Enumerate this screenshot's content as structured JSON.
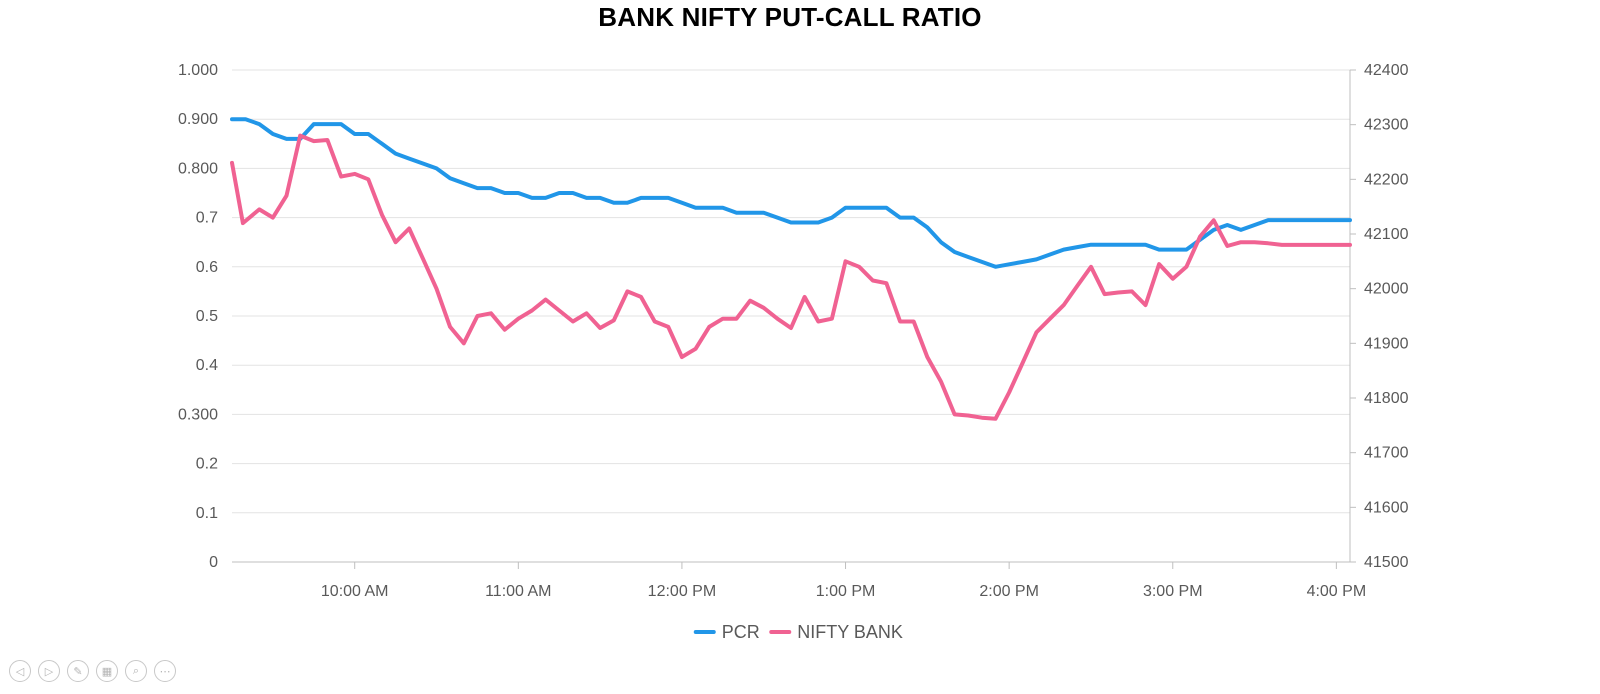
{
  "chart_data": {
    "type": "line",
    "title": "BANK NIFTY PUT-CALL RATIO",
    "left_axis": {
      "min": 0,
      "max": 1.0,
      "tick_values": [
        0,
        0.1,
        0.2,
        0.3,
        0.4,
        0.5,
        0.6,
        0.7,
        0.8,
        0.9,
        1.0
      ],
      "tick_labels": [
        "0",
        "0.1",
        "0.2",
        "0.300",
        "0.4",
        "0.5",
        "0.6",
        "0.7",
        "0.800",
        "0.900",
        "1.000"
      ]
    },
    "right_axis": {
      "min": 41500,
      "max": 42400,
      "tick_values": [
        41500,
        41600,
        41700,
        41800,
        41900,
        42000,
        42100,
        42200,
        42300,
        42400
      ],
      "tick_labels": [
        "41500",
        "41600",
        "41700",
        "41800",
        "41900",
        "42000",
        "42100",
        "42200",
        "42300",
        "42400"
      ]
    },
    "x_axis": {
      "min": "09:15",
      "max": "16:05",
      "tick_values": [
        "10:00",
        "11:00",
        "12:00",
        "13:00",
        "14:00",
        "15:00",
        "16:00"
      ],
      "tick_labels": [
        "10:00 AM",
        "11:00 AM",
        "12:00 PM",
        "1:00 PM",
        "2:00 PM",
        "3:00 PM",
        "4:00 PM"
      ]
    },
    "grid": true,
    "legend_position": "bottom",
    "series": [
      {
        "name": "PCR",
        "axis": "left",
        "color": "#2196e8",
        "points": [
          [
            "09:15",
            0.9
          ],
          [
            "09:20",
            0.9
          ],
          [
            "09:25",
            0.89
          ],
          [
            "09:30",
            0.87
          ],
          [
            "09:35",
            0.86
          ],
          [
            "09:40",
            0.86
          ],
          [
            "09:45",
            0.89
          ],
          [
            "09:50",
            0.89
          ],
          [
            "09:55",
            0.89
          ],
          [
            "10:00",
            0.87
          ],
          [
            "10:05",
            0.87
          ],
          [
            "10:10",
            0.85
          ],
          [
            "10:15",
            0.83
          ],
          [
            "10:20",
            0.82
          ],
          [
            "10:25",
            0.81
          ],
          [
            "10:30",
            0.8
          ],
          [
            "10:35",
            0.78
          ],
          [
            "10:40",
            0.77
          ],
          [
            "10:45",
            0.76
          ],
          [
            "10:50",
            0.76
          ],
          [
            "10:55",
            0.75
          ],
          [
            "11:00",
            0.75
          ],
          [
            "11:05",
            0.74
          ],
          [
            "11:10",
            0.74
          ],
          [
            "11:15",
            0.75
          ],
          [
            "11:20",
            0.75
          ],
          [
            "11:25",
            0.74
          ],
          [
            "11:30",
            0.74
          ],
          [
            "11:35",
            0.73
          ],
          [
            "11:40",
            0.73
          ],
          [
            "11:45",
            0.74
          ],
          [
            "11:50",
            0.74
          ],
          [
            "11:55",
            0.74
          ],
          [
            "12:00",
            0.73
          ],
          [
            "12:05",
            0.72
          ],
          [
            "12:10",
            0.72
          ],
          [
            "12:15",
            0.72
          ],
          [
            "12:20",
            0.71
          ],
          [
            "12:25",
            0.71
          ],
          [
            "12:30",
            0.71
          ],
          [
            "12:35",
            0.7
          ],
          [
            "12:40",
            0.69
          ],
          [
            "12:45",
            0.69
          ],
          [
            "12:50",
            0.69
          ],
          [
            "12:55",
            0.7
          ],
          [
            "13:00",
            0.72
          ],
          [
            "13:05",
            0.72
          ],
          [
            "13:10",
            0.72
          ],
          [
            "13:15",
            0.72
          ],
          [
            "13:20",
            0.7
          ],
          [
            "13:25",
            0.7
          ],
          [
            "13:30",
            0.68
          ],
          [
            "13:35",
            0.65
          ],
          [
            "13:40",
            0.63
          ],
          [
            "13:45",
            0.62
          ],
          [
            "13:50",
            0.61
          ],
          [
            "13:55",
            0.6
          ],
          [
            "14:00",
            0.605
          ],
          [
            "14:05",
            0.61
          ],
          [
            "14:10",
            0.615
          ],
          [
            "14:15",
            0.625
          ],
          [
            "14:20",
            0.635
          ],
          [
            "14:25",
            0.64
          ],
          [
            "14:30",
            0.645
          ],
          [
            "14:35",
            0.645
          ],
          [
            "14:40",
            0.645
          ],
          [
            "14:45",
            0.645
          ],
          [
            "14:50",
            0.645
          ],
          [
            "14:55",
            0.635
          ],
          [
            "15:00",
            0.635
          ],
          [
            "15:05",
            0.635
          ],
          [
            "15:10",
            0.655
          ],
          [
            "15:15",
            0.675
          ],
          [
            "15:20",
            0.685
          ],
          [
            "15:25",
            0.675
          ],
          [
            "15:30",
            0.685
          ],
          [
            "15:35",
            0.695
          ],
          [
            "15:40",
            0.695
          ],
          [
            "15:45",
            0.695
          ],
          [
            "15:50",
            0.695
          ],
          [
            "15:55",
            0.695
          ],
          [
            "16:00",
            0.695
          ],
          [
            "16:05",
            0.695
          ]
        ]
      },
      {
        "name": "NIFTY BANK",
        "axis": "right",
        "color": "#f06292",
        "points": [
          [
            "09:15",
            42230
          ],
          [
            "09:19",
            42120
          ],
          [
            "09:25",
            42145
          ],
          [
            "09:30",
            42130
          ],
          [
            "09:35",
            42170
          ],
          [
            "09:40",
            42280
          ],
          [
            "09:45",
            42270
          ],
          [
            "09:50",
            42272
          ],
          [
            "09:55",
            42205
          ],
          [
            "10:00",
            42210
          ],
          [
            "10:05",
            42200
          ],
          [
            "10:10",
            42135
          ],
          [
            "10:15",
            42085
          ],
          [
            "10:20",
            42110
          ],
          [
            "10:25",
            42055
          ],
          [
            "10:30",
            42000
          ],
          [
            "10:35",
            41930
          ],
          [
            "10:40",
            41900
          ],
          [
            "10:45",
            41950
          ],
          [
            "10:50",
            41955
          ],
          [
            "10:55",
            41925
          ],
          [
            "11:00",
            41945
          ],
          [
            "11:05",
            41960
          ],
          [
            "11:10",
            41980
          ],
          [
            "11:15",
            41960
          ],
          [
            "11:20",
            41940
          ],
          [
            "11:25",
            41955
          ],
          [
            "11:30",
            41928
          ],
          [
            "11:35",
            41942
          ],
          [
            "11:40",
            41995
          ],
          [
            "11:45",
            41985
          ],
          [
            "11:50",
            41940
          ],
          [
            "11:55",
            41930
          ],
          [
            "12:00",
            41875
          ],
          [
            "12:05",
            41890
          ],
          [
            "12:10",
            41930
          ],
          [
            "12:15",
            41945
          ],
          [
            "12:20",
            41945
          ],
          [
            "12:25",
            41978
          ],
          [
            "12:30",
            41965
          ],
          [
            "12:35",
            41945
          ],
          [
            "12:40",
            41928
          ],
          [
            "12:45",
            41985
          ],
          [
            "12:50",
            41940
          ],
          [
            "12:55",
            41945
          ],
          [
            "13:00",
            42050
          ],
          [
            "13:05",
            42040
          ],
          [
            "13:10",
            42015
          ],
          [
            "13:15",
            42010
          ],
          [
            "13:20",
            41940
          ],
          [
            "13:25",
            41940
          ],
          [
            "13:30",
            41875
          ],
          [
            "13:35",
            41830
          ],
          [
            "13:40",
            41770
          ],
          [
            "13:45",
            41768
          ],
          [
            "13:50",
            41764
          ],
          [
            "13:55",
            41762
          ],
          [
            "14:00",
            41810
          ],
          [
            "14:05",
            41865
          ],
          [
            "14:10",
            41920
          ],
          [
            "14:15",
            41945
          ],
          [
            "14:20",
            41970
          ],
          [
            "14:25",
            42005
          ],
          [
            "14:30",
            42040
          ],
          [
            "14:35",
            41990
          ],
          [
            "14:40",
            41993
          ],
          [
            "14:45",
            41995
          ],
          [
            "14:50",
            41970
          ],
          [
            "14:55",
            42045
          ],
          [
            "15:00",
            42018
          ],
          [
            "15:05",
            42040
          ],
          [
            "15:10",
            42095
          ],
          [
            "15:15",
            42125
          ],
          [
            "15:20",
            42078
          ],
          [
            "15:25",
            42085
          ],
          [
            "15:30",
            42085
          ],
          [
            "15:35",
            42083
          ],
          [
            "15:40",
            42080
          ],
          [
            "15:45",
            42080
          ],
          [
            "15:50",
            42080
          ],
          [
            "15:55",
            42080
          ],
          [
            "16:00",
            42080
          ],
          [
            "16:05",
            42080
          ]
        ]
      }
    ]
  },
  "legend": {
    "items": [
      {
        "label": "PCR",
        "color": "#2196e8"
      },
      {
        "label": "NIFTY BANK",
        "color": "#f06292"
      }
    ]
  },
  "toolbar": {
    "buttons": [
      {
        "icon": "previous-icon",
        "glyph": "◁"
      },
      {
        "icon": "next-icon",
        "glyph": "▷"
      },
      {
        "icon": "pen-icon",
        "glyph": "✎"
      },
      {
        "icon": "slides-grid-icon",
        "glyph": "▦"
      },
      {
        "icon": "zoom-icon",
        "glyph": "⌕"
      },
      {
        "icon": "more-options-icon",
        "glyph": "⋯"
      }
    ]
  }
}
